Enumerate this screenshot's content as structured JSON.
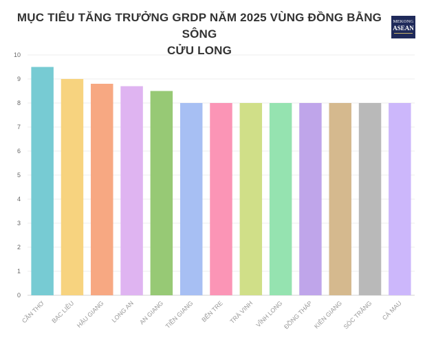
{
  "header": {
    "title_line1": "MỤC TIÊU TĂNG TRƯỞNG GRDP NĂM 2025 VÙNG ĐỒNG BẰNG SÔNG",
    "title_line2": "CỬU LONG"
  },
  "logo": {
    "line1": "MEKONG",
    "line2": "ASEAN"
  },
  "chart_data": {
    "type": "bar",
    "title": "MỤC TIÊU TĂNG TRƯỞNG GRDP NĂM 2025 VÙNG ĐỒNG BẰNG SÔNG CỬU LONG",
    "xlabel": "",
    "ylabel": "",
    "ylim": [
      0,
      10
    ],
    "yticks": [
      0,
      1,
      2,
      3,
      4,
      5,
      6,
      7,
      8,
      9,
      10
    ],
    "grid": true,
    "legend": "none",
    "categories": [
      "CẦN THƠ",
      "BẠC LIÊU",
      "HẬU GIANG",
      "LONG AN",
      "AN GIANG",
      "TIỀN GIANG",
      "BẾN TRE",
      "TRÀ VINH",
      "VĨNH LONG",
      "ĐỒNG THÁP",
      "KIÊN GIANG",
      "SÓC TRĂNG",
      "CÀ MAU"
    ],
    "values": [
      9.5,
      9.0,
      8.8,
      8.7,
      8.5,
      8.0,
      8.0,
      8.0,
      8.0,
      8.0,
      8.0,
      8.0,
      8.0
    ],
    "colors": [
      "#77cbd3",
      "#f7d37f",
      "#f7a882",
      "#dfb4f1",
      "#97c975",
      "#a7bff3",
      "#fb95b6",
      "#d0df88",
      "#95e3b0",
      "#bfa5ea",
      "#d5b98e",
      "#b9b9b9",
      "#ccb7fb"
    ]
  }
}
